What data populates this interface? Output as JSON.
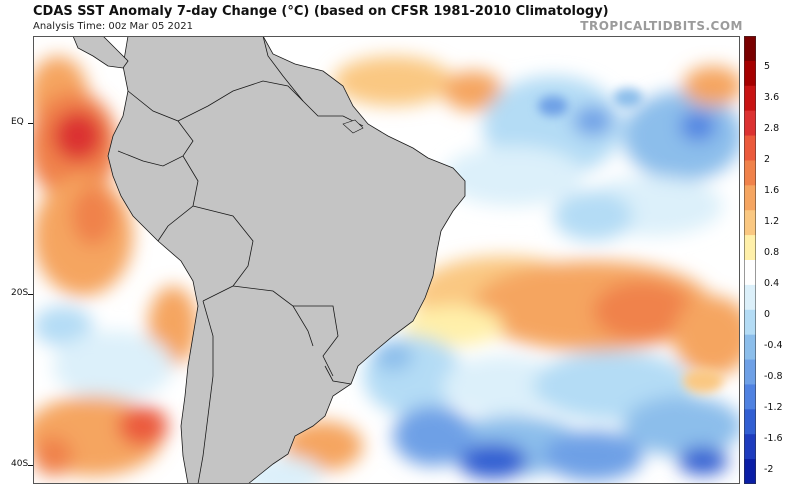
{
  "header": {
    "title": "CDAS SST Anomaly 7-day Change (°C) (based on CFSR 1981-2010 Climatology)",
    "subtitle": "Analysis Time: 00z Mar 05 2021",
    "brand": "TROPICALTIDBITS.COM"
  },
  "map": {
    "lat_labels": [
      "EQ",
      "20S",
      "40S"
    ],
    "land_color": "#c4c4c4",
    "border_color": "#1a1a1a"
  },
  "colorbar": {
    "labels": [
      "5",
      "3.6",
      "2.8",
      "2",
      "1.6",
      "1.2",
      "0.8",
      "0.4",
      "0",
      "-0.4",
      "-0.8",
      "-1.2",
      "-1.6",
      "-2"
    ],
    "colors": [
      "#7a0000",
      "#a50000",
      "#c81414",
      "#dc3232",
      "#eb5a3c",
      "#f0824b",
      "#f5a561",
      "#fac882",
      "#fff0aa",
      "#ffffff",
      "#dcf0fa",
      "#b4dcf5",
      "#8cbeeb",
      "#6ea0e6",
      "#5082e1",
      "#325fd2",
      "#1e3cbe",
      "#0a1ea5"
    ]
  }
}
